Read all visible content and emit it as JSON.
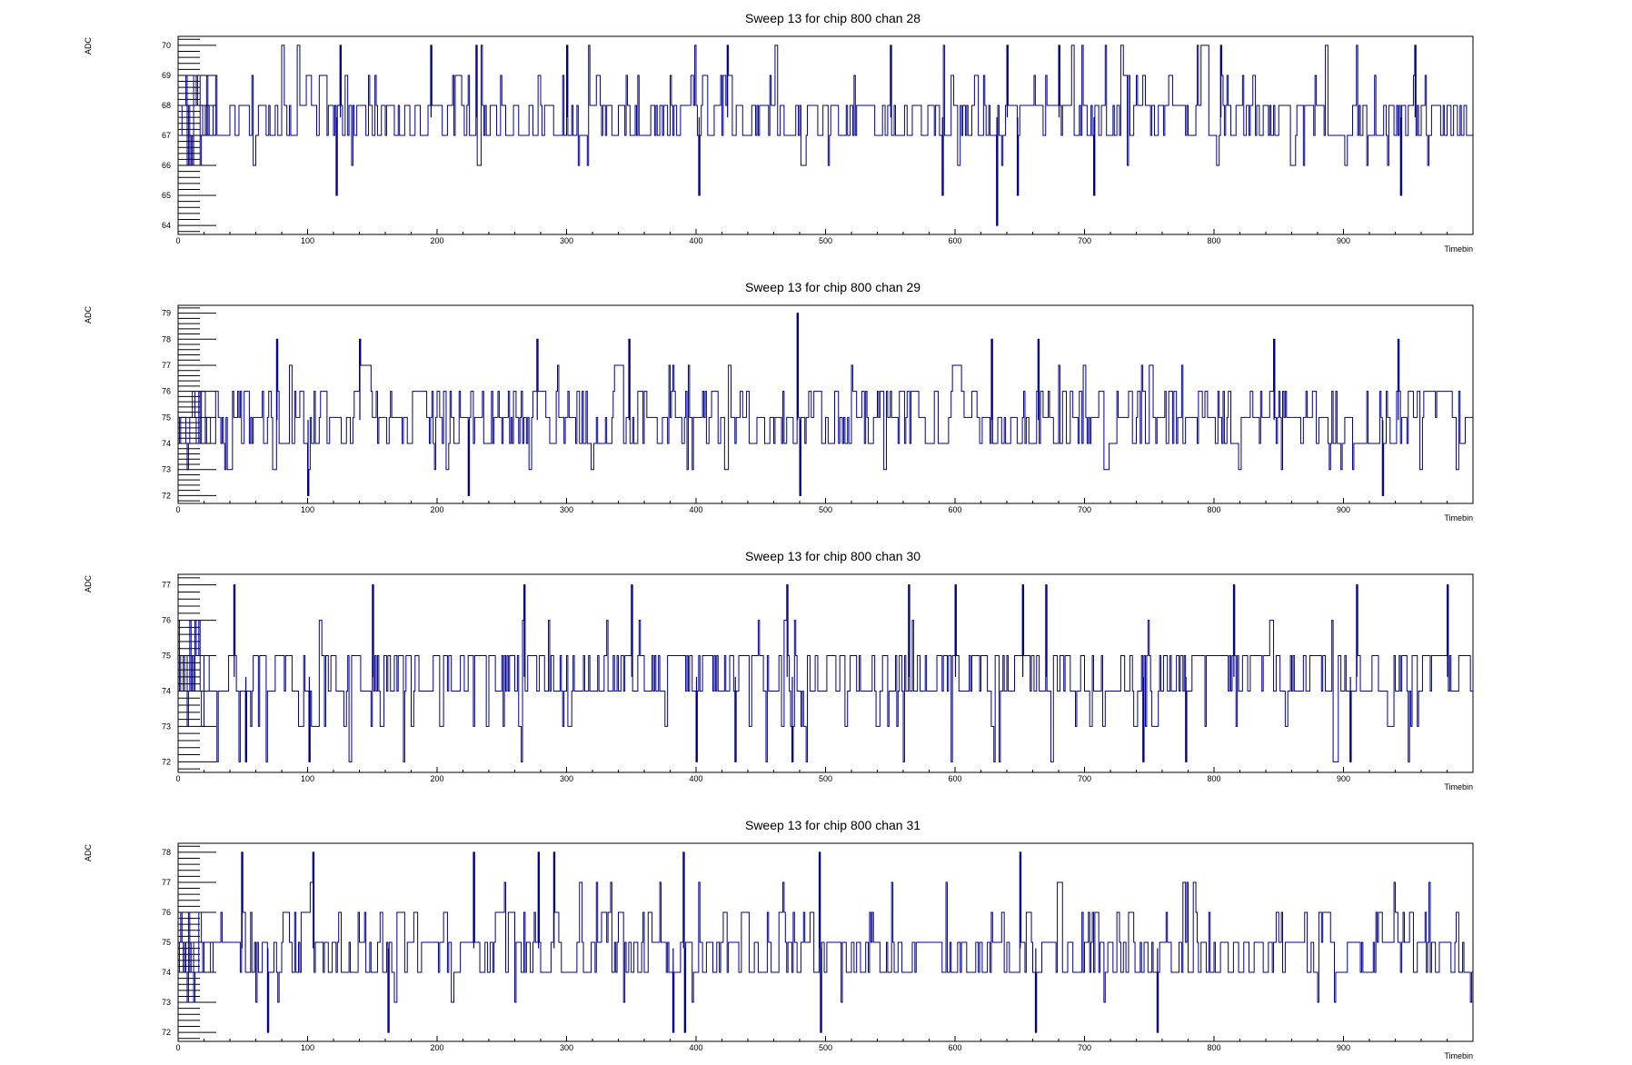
{
  "series_color": "#00008b",
  "chart_data": [
    {
      "type": "line",
      "title": "Sweep 13 for chip 800 chan 28",
      "xlabel": "Timebin",
      "ylabel": "ADC",
      "xlim": [
        0,
        1000
      ],
      "ylim": [
        63.7,
        70.3
      ],
      "x_ticks": [
        0,
        100,
        200,
        300,
        400,
        500,
        600,
        700,
        800,
        900
      ],
      "y_ticks": [
        64,
        65,
        66,
        67,
        68,
        69,
        70
      ],
      "grid": false,
      "baseline": 67.6,
      "low_extremes": [
        [
          122,
          65
        ],
        [
          402,
          65
        ],
        [
          590,
          65
        ],
        [
          632,
          64
        ],
        [
          648,
          65
        ],
        [
          707,
          65
        ],
        [
          944,
          65
        ]
      ],
      "high_extremes": [
        [
          125,
          70
        ],
        [
          195,
          70
        ],
        [
          230,
          70
        ],
        [
          300,
          70
        ],
        [
          424,
          70
        ],
        [
          550,
          70
        ],
        [
          640,
          70
        ],
        [
          680,
          70
        ],
        [
          805,
          70
        ],
        [
          955,
          70
        ]
      ]
    },
    {
      "type": "line",
      "title": "Sweep 13 for chip 800 chan 29",
      "xlabel": "Timebin",
      "ylabel": "ADC",
      "xlim": [
        0,
        1000
      ],
      "ylim": [
        71.7,
        79.3
      ],
      "x_ticks": [
        0,
        100,
        200,
        300,
        400,
        500,
        600,
        700,
        800,
        900
      ],
      "y_ticks": [
        72,
        73,
        74,
        75,
        76,
        77,
        78,
        79
      ],
      "grid": false,
      "baseline": 74.9,
      "low_extremes": [
        [
          100,
          72
        ],
        [
          224,
          72
        ],
        [
          480,
          72
        ],
        [
          930,
          72
        ]
      ],
      "high_extremes": [
        [
          76,
          78
        ],
        [
          140,
          78
        ],
        [
          277,
          78
        ],
        [
          348,
          78
        ],
        [
          478,
          79
        ],
        [
          628,
          78
        ],
        [
          664,
          78
        ],
        [
          846,
          78
        ],
        [
          942,
          78
        ]
      ]
    },
    {
      "type": "line",
      "title": "Sweep 13 for chip 800 chan 30",
      "xlabel": "Timebin",
      "ylabel": "ADC",
      "xlim": [
        0,
        1000
      ],
      "ylim": [
        71.7,
        77.3
      ],
      "x_ticks": [
        0,
        100,
        200,
        300,
        400,
        500,
        600,
        700,
        800,
        900
      ],
      "y_ticks": [
        72,
        73,
        74,
        75,
        76,
        77
      ],
      "grid": false,
      "baseline": 74.4,
      "low_extremes": [
        [
          52,
          72
        ],
        [
          101,
          72
        ],
        [
          400,
          72
        ],
        [
          430,
          72
        ],
        [
          474,
          72
        ],
        [
          745,
          72
        ],
        [
          778,
          72
        ],
        [
          905,
          72
        ]
      ],
      "high_extremes": [
        [
          43,
          77
        ],
        [
          150,
          77
        ],
        [
          267,
          77
        ],
        [
          350,
          77
        ],
        [
          470,
          77
        ],
        [
          564,
          77
        ],
        [
          600,
          77
        ],
        [
          652,
          77
        ],
        [
          670,
          77
        ],
        [
          815,
          77
        ],
        [
          910,
          77
        ],
        [
          980,
          77
        ]
      ]
    },
    {
      "type": "line",
      "title": "Sweep 13 for chip 800 chan 31",
      "xlabel": "Timebin",
      "ylabel": "ADC",
      "xlim": [
        0,
        1000
      ],
      "ylim": [
        71.7,
        78.3
      ],
      "x_ticks": [
        0,
        100,
        200,
        300,
        400,
        500,
        600,
        700,
        800,
        900
      ],
      "y_ticks": [
        72,
        73,
        74,
        75,
        76,
        77,
        78
      ],
      "grid": false,
      "baseline": 74.8,
      "low_extremes": [
        [
          69,
          72
        ],
        [
          162,
          72
        ],
        [
          382,
          72
        ],
        [
          391,
          72
        ],
        [
          496,
          72
        ],
        [
          662,
          72
        ],
        [
          756,
          72
        ]
      ],
      "high_extremes": [
        [
          49,
          78
        ],
        [
          104,
          78
        ],
        [
          228,
          78
        ],
        [
          278,
          78
        ],
        [
          290,
          78
        ],
        [
          390,
          78
        ],
        [
          495,
          78
        ],
        [
          650,
          78
        ]
      ]
    }
  ]
}
